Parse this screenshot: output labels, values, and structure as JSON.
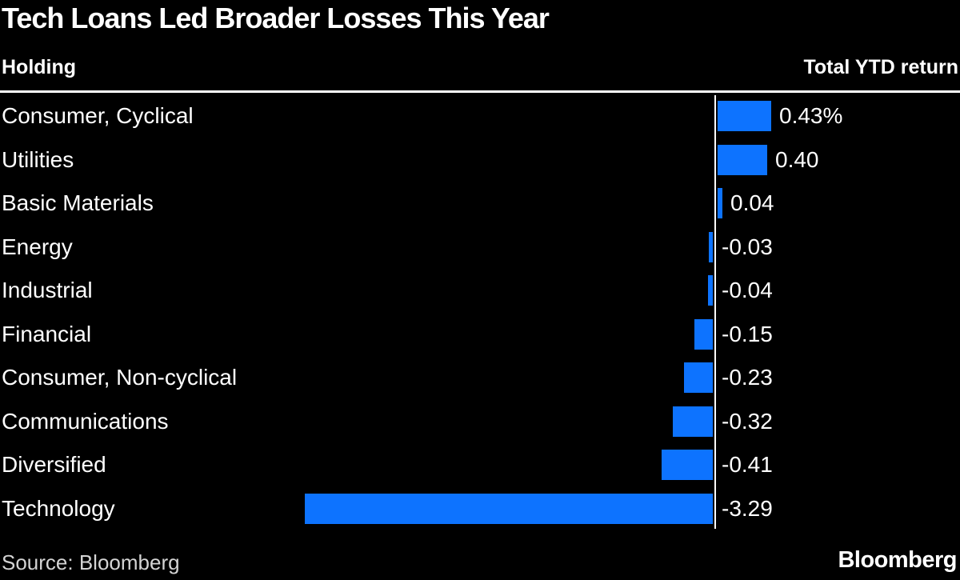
{
  "chart_data": {
    "type": "bar",
    "orientation": "horizontal",
    "title": "Tech Loans Led Broader Losses This Year",
    "column_headers": {
      "left": "Holding",
      "right": "Total YTD return"
    },
    "categories": [
      "Consumer, Cyclical",
      "Utilities",
      "Basic Materials",
      "Energy",
      "Industrial",
      "Financial",
      "Consumer, Non-cyclical",
      "Communications",
      "Diversified",
      "Technology"
    ],
    "values": [
      0.43,
      0.4,
      0.04,
      -0.03,
      -0.04,
      -0.15,
      -0.23,
      -0.32,
      -0.41,
      -3.29
    ],
    "value_labels": [
      "0.43%",
      "0.40",
      "0.04",
      "-0.03",
      "-0.04",
      "-0.15",
      "-0.23",
      "-0.32",
      "-0.41",
      "-3.29"
    ],
    "unit": "percent",
    "xlim": [
      -3.29,
      0.43
    ],
    "grid": false,
    "legend": false,
    "bar_color": "#0d73ff",
    "axis_color": "#ffffff",
    "background_color": "#000000"
  },
  "footer": {
    "source": "Source: Bloomberg",
    "brand": "Bloomberg"
  }
}
